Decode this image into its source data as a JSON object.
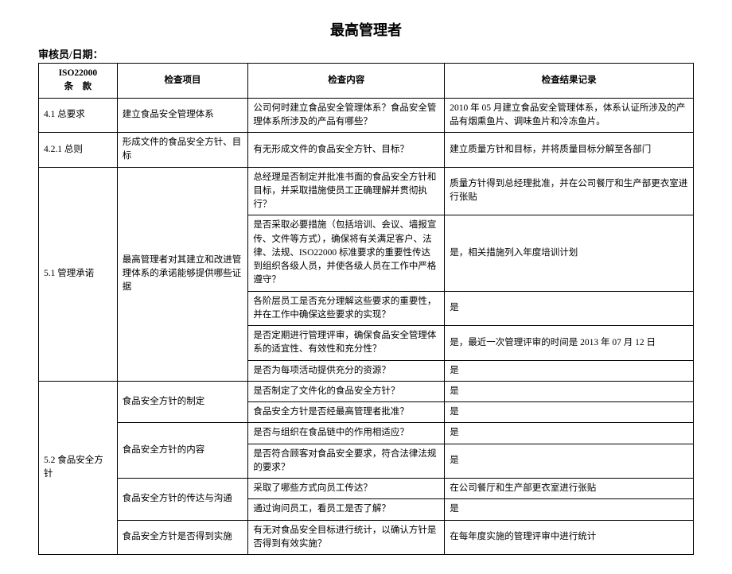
{
  "title": "最高管理者",
  "subHeader": "审核员/日期：",
  "headers": {
    "clause": "ISO22000\n条　款",
    "item": "检查项目",
    "content": "检查内容",
    "result": "检查结果记录"
  },
  "rows": {
    "r1": {
      "clause": "4.1 总要求",
      "item": "建立食品安全管理体系",
      "content": "公司何时建立食品安全管理体系？食品安全管理体系所涉及的产品有哪些？",
      "result": "2010 年 05 月建立食品安全管理体系，体系认证所涉及的产品有烟熏鱼片、调味鱼片和冷冻鱼片。"
    },
    "r2": {
      "clause": "4.2.1 总则",
      "item": "形成文件的食品安全方针、目标",
      "content": "有无形成文件的食品安全方针、目标？",
      "result": "建立质量方针和目标，并将质量目标分解至各部门"
    },
    "r3": {
      "clause": "5.1 管理承诺",
      "item": "最高管理者对其建立和改进管理体系的承诺能够提供哪些证据",
      "c1": "总经理是否制定并批准书面的食品安全方针和目标，并采取措施使员工正确理解并贯彻执行？",
      "res1": "质量方针得到总经理批准，并在公司餐厅和生产部更衣室进行张贴",
      "c2": "是否采取必要措施（包括培训、会议、墙报宣传、文件等方式），确保将有关满足客户、法律、法规、ISO22000 标准要求的重要性传达到组织各级人员，并使各级人员在工作中严格遵守？",
      "res2": "是，相关措施列入年度培训计划",
      "c3": "各阶层员工是否充分理解这些要求的重要性，并在工作中确保这些要求的实现？",
      "res3": "是",
      "c4": "是否定期进行管理评审，确保食品安全管理体系的适宜性、有效性和充分性？",
      "res4": "是，最近一次管理评审的时间是 2013 年 07 月 12 日",
      "c5": "是否为每项活动提供充分的资源？",
      "res5": "是"
    },
    "r4": {
      "clause": "5.2 食品安全方针",
      "i1": "食品安全方针的制定",
      "c1": "是否制定了文件化的食品安全方针？",
      "res1": "是",
      "c2": "食品安全方针是否经最高管理者批准？",
      "res2": "是",
      "i2": "食品安全方针的内容",
      "c3": "是否与组织在食品链中的作用相适应？",
      "res3": "是",
      "c4": "是否符合顾客对食品安全要求，符合法律法规的要求？",
      "res4": "是",
      "i3": "食品安全方针的传达与沟通",
      "c5": "采取了哪些方式向员工传达？",
      "res5": "在公司餐厅和生产部更衣室进行张贴",
      "c6": "通过询问员工，看员工是否了解？",
      "res6": "是",
      "i4": "食品安全方针是否得到实施",
      "c7": "有无对食品安全目标进行统计，以确认方针是否得到有效实施？",
      "res7": "在每年度实施的管理评审中进行统计"
    }
  }
}
